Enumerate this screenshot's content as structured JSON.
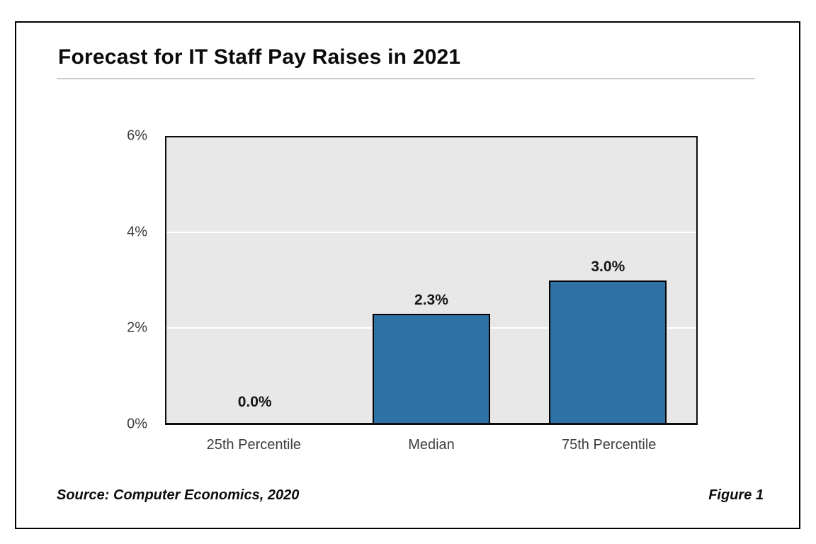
{
  "chart_data": {
    "type": "bar",
    "title": "Forecast for IT Staff Pay Raises in 2021",
    "categories": [
      "25th Percentile",
      "Median",
      "75th Percentile"
    ],
    "values": [
      0.0,
      2.3,
      3.0
    ],
    "data_labels": [
      "0.0%",
      "2.3%",
      "3.0%"
    ],
    "xlabel": "",
    "ylabel": "",
    "ylim": [
      0,
      6
    ],
    "yticks": [
      0,
      2,
      4,
      6
    ],
    "ytick_labels": [
      "0%",
      "2%",
      "4%",
      "6%"
    ],
    "grid": "horizontal white gridlines at 2% and 4%",
    "legend_position": "none",
    "source": "Source: Computer Economics, 2020",
    "figure_label": "Figure 1",
    "colors": {
      "bar_fill": "#2e71a4",
      "bar_border": "#000000",
      "plot_background": "#e8e8e8",
      "gridline": "#ffffff",
      "frame_border": "#000000",
      "title_text": "#0b0b0b",
      "axis_text": "#3d3d3d",
      "title_rule": "#cbcbcb"
    }
  }
}
